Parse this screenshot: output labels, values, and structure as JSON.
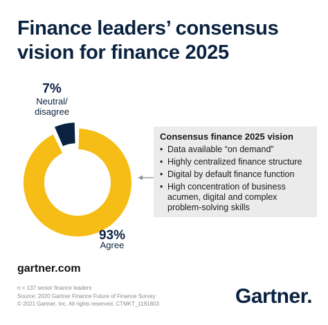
{
  "chart_data": {
    "type": "donut",
    "title": "Finance leaders’ consensus vision for finance 2025",
    "categories": [
      "Agree",
      "Neutral/\ndisagree"
    ],
    "values": [
      93,
      7
    ],
    "value_labels": [
      "93%",
      "7%"
    ],
    "colors": [
      "#f6bd16",
      "#0a2240"
    ],
    "annotation": {
      "title": "Consensus finance 2025 vision",
      "items": [
        "Data available “on demand”",
        "Highly centralized finance structure",
        "Digital by default finance function",
        "High concentration of business acumen, digital and complex problem-solving skills"
      ]
    }
  },
  "footer": {
    "site": "gartner.com",
    "notes": [
      "n = 137 senior finance leaders",
      "Source: 2020 Gartner Finance Future of Finance Survey",
      "© 2021 Gartner, Inc. All rights reserved. CTMKT_1181803"
    ],
    "logo": "Gartner."
  }
}
